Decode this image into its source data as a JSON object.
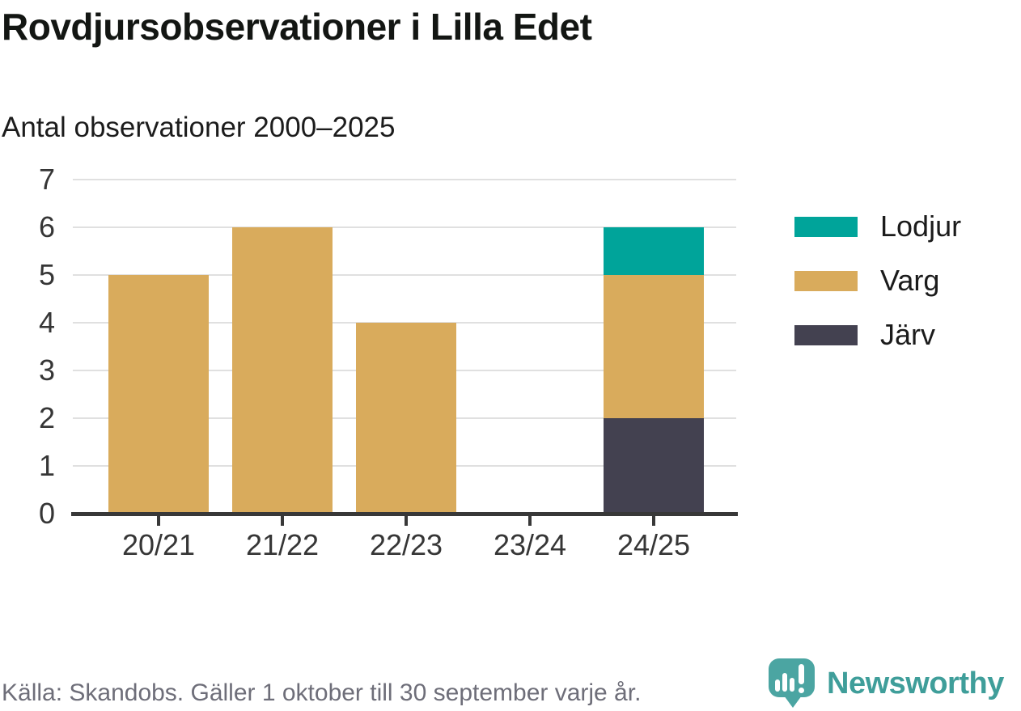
{
  "header": {
    "title": "Rovdjursobservationer i Lilla Edet",
    "subtitle": "Antal observationer 2000–2025"
  },
  "chart_data": {
    "type": "bar",
    "stacked": true,
    "title": "Rovdjursobservationer i Lilla Edet",
    "subtitle": "Antal observationer 2000–2025",
    "xlabel": "",
    "ylabel": "",
    "categories": [
      "20/21",
      "21/22",
      "22/23",
      "23/24",
      "24/25"
    ],
    "series": [
      {
        "name": "Järv",
        "color": "#434150",
        "values": [
          0,
          0,
          0,
          0,
          2
        ]
      },
      {
        "name": "Varg",
        "color": "#d9ab5c",
        "values": [
          5,
          6,
          4,
          0,
          3
        ]
      },
      {
        "name": "Lodjur",
        "color": "#00a49a",
        "values": [
          0,
          0,
          0,
          0,
          1
        ]
      }
    ],
    "totals": [
      5,
      6,
      4,
      0,
      6
    ],
    "ylim": [
      0,
      7
    ],
    "yticks": [
      0,
      1,
      2,
      3,
      4,
      5,
      6,
      7
    ],
    "grid": true,
    "legend_position": "right",
    "legend": [
      {
        "label": "Lodjur",
        "color": "#00a49a"
      },
      {
        "label": "Varg",
        "color": "#d9ab5c"
      },
      {
        "label": "Järv",
        "color": "#434150"
      }
    ]
  },
  "colors": {
    "lodjur": "#00a49a",
    "varg": "#d9ab5c",
    "jarv": "#434150",
    "axis": "#383838",
    "gridline": "#e0e0e0",
    "brand_teal": "#3f9e9a"
  },
  "footer": {
    "source": "Källa: Skandobs. Gäller 1 oktober till 30 september varje år.",
    "brand": "Newsworthy"
  }
}
